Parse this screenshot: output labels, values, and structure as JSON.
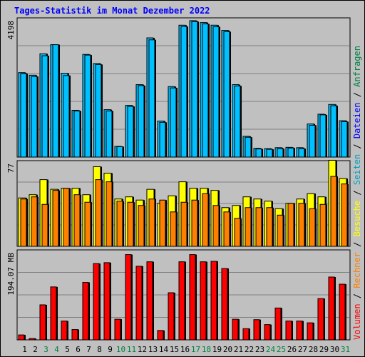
{
  "title": "Tages-Statistik im Monat Dezember 2022",
  "colors": {
    "background": "#c0c0c0",
    "title": "#0000ff",
    "anfragen": "#00c0ff",
    "dateien": "#0080ff",
    "seiten": "#00e0ff",
    "besuche": "#ffff00",
    "rechner": "#ff8000",
    "volumen": "#ff0000",
    "anfragen_label": "#008040",
    "dateien_label": "#0000ff",
    "seiten_label": "#00a0c0",
    "besuche_label": "#ffff00",
    "rechner_label": "#ff8000",
    "volumen_label": "#ff0000",
    "weekend_tick": "#008040"
  },
  "chart_data": [
    {
      "type": "bar",
      "name": "requests-files",
      "ylabel": "4198",
      "ymax": 4198,
      "categories": [
        "1",
        "2",
        "3",
        "4",
        "5",
        "6",
        "7",
        "8",
        "9",
        "10",
        "11",
        "12",
        "13",
        "14",
        "15",
        "16",
        "17",
        "18",
        "19",
        "20",
        "21",
        "22",
        "23",
        "24",
        "25",
        "26",
        "27",
        "28",
        "29",
        "30",
        "31"
      ],
      "weekend_days": [
        3,
        4,
        10,
        11,
        17,
        18,
        24,
        25,
        31
      ],
      "series": [
        {
          "name": "Anfragen",
          "values": [
            2600,
            2520,
            3180,
            3460,
            2580,
            1440,
            3160,
            2880,
            1460,
            330,
            1590,
            2230,
            3670,
            1110,
            2170,
            4060,
            4200,
            4140,
            4060,
            3900,
            2230,
            640,
            270,
            260,
            290,
            300,
            290,
            1020,
            1320,
            1620,
            1120
          ]
        },
        {
          "name": "Dateien",
          "values": [
            2570,
            2480,
            3120,
            3460,
            2510,
            1420,
            3140,
            2850,
            1420,
            320,
            1560,
            2200,
            3610,
            1070,
            2130,
            4020,
            4170,
            4100,
            4010,
            3860,
            2190,
            610,
            250,
            240,
            260,
            280,
            260,
            980,
            1300,
            1580,
            1090
          ]
        }
      ],
      "legend": [
        "Anfragen",
        "/",
        "Dateien",
        "/"
      ]
    },
    {
      "type": "bar",
      "name": "pages-visits",
      "ylabel": "77",
      "ymax": 77,
      "categories": [
        "1",
        "2",
        "3",
        "4",
        "5",
        "6",
        "7",
        "8",
        "9",
        "10",
        "11",
        "12",
        "13",
        "14",
        "15",
        "16",
        "17",
        "18",
        "19",
        "20",
        "21",
        "22",
        "23",
        "24",
        "25",
        "26",
        "27",
        "28",
        "29",
        "30",
        "31"
      ],
      "series": [
        {
          "name": "Seiten",
          "values": [
            45,
            48,
            62,
            53,
            54,
            54,
            48,
            74,
            68,
            44,
            46,
            43,
            53,
            40,
            47,
            60,
            54,
            54,
            52,
            36,
            38,
            46,
            44,
            42,
            35,
            40,
            44,
            49,
            46,
            80,
            63
          ]
        },
        {
          "name": "Besuche",
          "values": [
            45,
            48,
            62,
            53,
            54,
            54,
            48,
            74,
            68,
            44,
            46,
            43,
            53,
            40,
            47,
            60,
            54,
            54,
            52,
            36,
            38,
            46,
            44,
            42,
            35,
            40,
            44,
            49,
            46,
            80,
            63
          ]
        },
        {
          "name": "Rechner",
          "values": [
            44,
            46,
            39,
            52,
            54,
            48,
            41,
            62,
            60,
            42,
            41,
            38,
            44,
            43,
            32,
            41,
            43,
            49,
            38,
            32,
            26,
            36,
            36,
            36,
            29,
            40,
            40,
            35,
            39,
            65,
            58
          ]
        }
      ],
      "legend": [
        "Seiten",
        "/",
        "Besuche",
        "/",
        "Rechner",
        "/"
      ]
    },
    {
      "type": "bar",
      "name": "volume",
      "ylabel": "194.07 MB",
      "ymax": 194.07,
      "categories": [
        "1",
        "2",
        "3",
        "4",
        "5",
        "6",
        "7",
        "8",
        "9",
        "10",
        "11",
        "12",
        "13",
        "14",
        "15",
        "16",
        "17",
        "18",
        "19",
        "20",
        "21",
        "22",
        "23",
        "24",
        "25",
        "26",
        "27",
        "28",
        "29",
        "30",
        "31"
      ],
      "series": [
        {
          "name": "Volumen",
          "values": [
            11,
            3,
            78,
            118,
            42,
            23,
            128,
            170,
            172,
            46,
            190,
            164,
            174,
            21,
            105,
            174,
            190,
            174,
            175,
            159,
            46,
            25,
            45,
            34,
            71,
            42,
            42,
            38,
            92,
            140,
            124
          ]
        }
      ],
      "legend": [
        "Volumen",
        "/"
      ]
    }
  ]
}
